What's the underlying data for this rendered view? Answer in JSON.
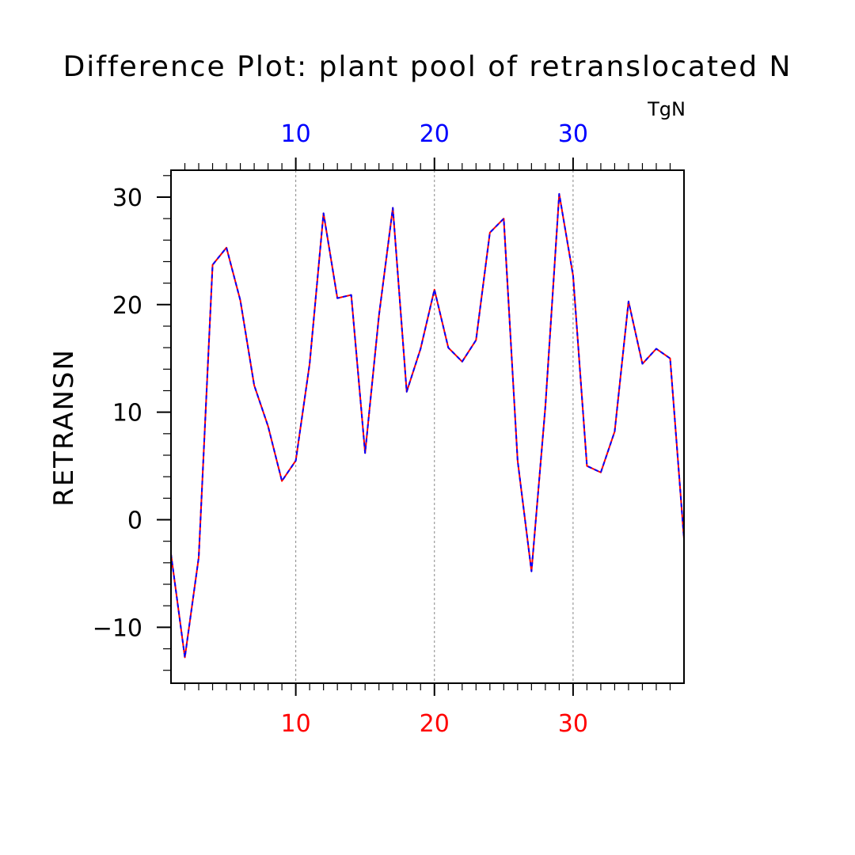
{
  "chart_data": {
    "type": "line",
    "title": "Difference Plot: plant pool of retranslocated N",
    "ylabel": "RETRANSN",
    "units": "TgN",
    "xlim": [
      1,
      38
    ],
    "ylim": [
      -15.2,
      32.5
    ],
    "x_ticks": [
      10,
      20,
      30
    ],
    "y_ticks": [
      -10,
      0,
      10,
      20,
      30
    ],
    "x_ticks_labels": [
      "10",
      "20",
      "30"
    ],
    "y_ticks_labels": [
      "−10",
      "0",
      "10",
      "20",
      "30"
    ],
    "grid": "vertical-dashed",
    "x": [
      1,
      2,
      3,
      4,
      5,
      6,
      7,
      8,
      9,
      10,
      11,
      12,
      13,
      14,
      15,
      16,
      17,
      18,
      19,
      20,
      21,
      22,
      23,
      24,
      25,
      26,
      27,
      28,
      29,
      30,
      31,
      32,
      33,
      34,
      35,
      36,
      37,
      38
    ],
    "series": [
      {
        "color": "#ff0000",
        "values": [
          -3.2,
          -12.8,
          -3.5,
          23.7,
          25.3,
          20.4,
          12.5,
          8.7,
          3.6,
          5.5,
          14.5,
          28.5,
          20.6,
          20.9,
          6.2,
          19.0,
          29.0,
          11.9,
          15.9,
          21.4,
          16.0,
          14.7,
          16.7,
          26.7,
          28.0,
          5.5,
          -4.8,
          10.5,
          30.3,
          22.7,
          5.0,
          4.4,
          8.2,
          20.3,
          14.5,
          15.9,
          15.0,
          -1.8
        ]
      },
      {
        "color": "#0000ff",
        "values": [
          -3.2,
          -12.8,
          -3.5,
          23.7,
          25.3,
          20.4,
          12.5,
          8.7,
          3.6,
          5.5,
          14.5,
          28.5,
          20.6,
          20.9,
          6.2,
          19.0,
          29.0,
          11.9,
          15.9,
          21.4,
          16.0,
          14.7,
          16.7,
          26.7,
          28.0,
          5.5,
          -4.8,
          10.5,
          30.3,
          22.7,
          5.0,
          4.4,
          8.2,
          20.3,
          14.5,
          15.9,
          15.0,
          -1.8
        ]
      }
    ],
    "axis_colors": {
      "bottom": "#ff0000",
      "top": "#0000ff"
    }
  }
}
